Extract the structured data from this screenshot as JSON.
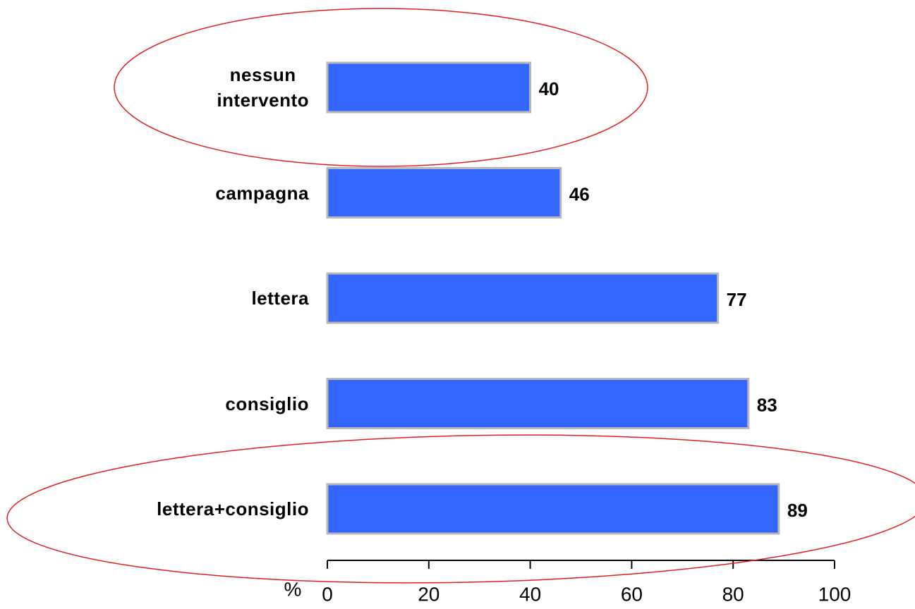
{
  "chart_data": {
    "type": "bar",
    "orientation": "horizontal",
    "categories": [
      "nessun intervento",
      "campagna",
      "lettera",
      "consiglio",
      "lettera+consiglio"
    ],
    "values": [
      40,
      46,
      77,
      83,
      89
    ],
    "color": "#3366ff",
    "x_label": "%",
    "xlim": [
      0,
      100
    ],
    "xticks": [
      0,
      20,
      40,
      60,
      80,
      100
    ]
  }
}
